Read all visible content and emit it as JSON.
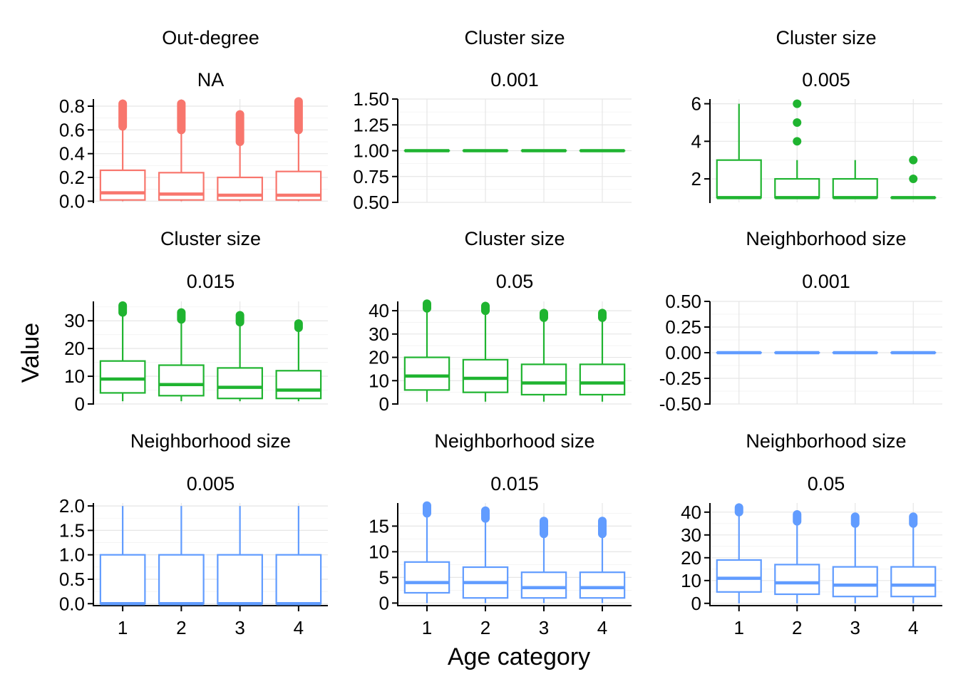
{
  "chart_data": {
    "type": "boxplot",
    "xlabel": "Age category",
    "ylabel": "Value",
    "categories": [
      "1",
      "2",
      "3",
      "4"
    ],
    "layout": "3x3 facet grid",
    "grid": true,
    "colors": {
      "out_degree": "#F8766D",
      "cluster_size": "#1FB430",
      "neighborhood_size": "#619CFF"
    },
    "panels": [
      {
        "metric": "Out-degree",
        "param": "NA",
        "color": "out_degree",
        "ylim": [
          -0.01,
          0.86
        ],
        "yticks": [
          0,
          0.2,
          0.4,
          0.6,
          0.8
        ],
        "ytick_labels": [
          "0.0",
          "0.2",
          "0.4",
          "0.6",
          "0.8"
        ],
        "boxes": [
          {
            "q1": 0.01,
            "median": 0.07,
            "q3": 0.26,
            "wlo": 0.0,
            "whi": 0.63,
            "outliers": [
              {
                "from": 0.63,
                "to": 0.82
              }
            ]
          },
          {
            "q1": 0.01,
            "median": 0.06,
            "q3": 0.24,
            "wlo": 0.0,
            "whi": 0.59,
            "outliers": [
              {
                "from": 0.6,
                "to": 0.82
              }
            ]
          },
          {
            "q1": 0.01,
            "median": 0.05,
            "q3": 0.2,
            "wlo": 0.0,
            "whi": 0.5,
            "outliers": [
              {
                "from": 0.5,
                "to": 0.73
              }
            ]
          },
          {
            "q1": 0.01,
            "median": 0.05,
            "q3": 0.25,
            "wlo": 0.0,
            "whi": 0.6,
            "outliers": [
              {
                "from": 0.6,
                "to": 0.84
              }
            ]
          }
        ]
      },
      {
        "metric": "Cluster size",
        "param": "0.001",
        "color": "cluster_size",
        "ylim": [
          0.5,
          1.5
        ],
        "yticks": [
          0.5,
          0.75,
          1.0,
          1.25,
          1.5
        ],
        "ytick_labels": [
          "0.50",
          "0.75",
          "1.00",
          "1.25",
          "1.50"
        ],
        "boxes": [
          {
            "q1": 1,
            "median": 1,
            "q3": 1,
            "wlo": 1,
            "whi": 1,
            "outliers": []
          },
          {
            "q1": 1,
            "median": 1,
            "q3": 1,
            "wlo": 1,
            "whi": 1,
            "outliers": []
          },
          {
            "q1": 1,
            "median": 1,
            "q3": 1,
            "wlo": 1,
            "whi": 1,
            "outliers": []
          },
          {
            "q1": 1,
            "median": 1,
            "q3": 1,
            "wlo": 1,
            "whi": 1,
            "outliers": []
          }
        ]
      },
      {
        "metric": "Cluster size",
        "param": "0.005",
        "color": "cluster_size",
        "ylim": [
          0.75,
          6.25
        ],
        "yticks": [
          2,
          4,
          6
        ],
        "ytick_labels": [
          "2",
          "4",
          "6"
        ],
        "boxes": [
          {
            "q1": 1,
            "median": 1,
            "q3": 3,
            "wlo": 1,
            "whi": 6,
            "outliers": []
          },
          {
            "q1": 1,
            "median": 1,
            "q3": 2,
            "wlo": 1,
            "whi": 3,
            "outliers": [
              4,
              5,
              6
            ]
          },
          {
            "q1": 1,
            "median": 1,
            "q3": 2,
            "wlo": 1,
            "whi": 3,
            "outliers": []
          },
          {
            "q1": 1,
            "median": 1,
            "q3": 1,
            "wlo": 1,
            "whi": 1,
            "outliers": [
              2,
              3
            ]
          }
        ]
      },
      {
        "metric": "Cluster size",
        "param": "0.015",
        "color": "cluster_size",
        "ylim": [
          0,
          37
        ],
        "yticks": [
          0,
          10,
          20,
          30
        ],
        "ytick_labels": [
          "0",
          "10",
          "20",
          "30"
        ],
        "boxes": [
          {
            "q1": 4,
            "median": 9,
            "q3": 15.5,
            "wlo": 1,
            "whi": 33,
            "outliers": [
              {
                "from": 33,
                "to": 35.5
              }
            ]
          },
          {
            "q1": 3,
            "median": 7,
            "q3": 14,
            "wlo": 1,
            "whi": 30.5,
            "outliers": [
              {
                "from": 30.5,
                "to": 33
              }
            ]
          },
          {
            "q1": 2,
            "median": 6,
            "q3": 13,
            "wlo": 1,
            "whi": 29.5,
            "outliers": [
              {
                "from": 29.5,
                "to": 32
              }
            ]
          },
          {
            "q1": 2,
            "median": 5,
            "q3": 12,
            "wlo": 1,
            "whi": 27.5,
            "outliers": [
              {
                "from": 27.5,
                "to": 29
              }
            ]
          }
        ]
      },
      {
        "metric": "Cluster size",
        "param": "0.05",
        "color": "cluster_size",
        "ylim": [
          0,
          44
        ],
        "yticks": [
          0,
          10,
          20,
          30,
          40
        ],
        "ytick_labels": [
          "0",
          "10",
          "20",
          "30",
          "40"
        ],
        "boxes": [
          {
            "q1": 6,
            "median": 12,
            "q3": 20,
            "wlo": 1,
            "whi": 41,
            "outliers": [
              {
                "from": 41,
                "to": 43
              }
            ]
          },
          {
            "q1": 5,
            "median": 11,
            "q3": 19,
            "wlo": 1,
            "whi": 40,
            "outliers": [
              {
                "from": 40,
                "to": 42
              }
            ]
          },
          {
            "q1": 4,
            "median": 9,
            "q3": 17,
            "wlo": 1,
            "whi": 37,
            "outliers": [
              {
                "from": 37,
                "to": 39
              }
            ]
          },
          {
            "q1": 4,
            "median": 9,
            "q3": 17,
            "wlo": 1,
            "whi": 37,
            "outliers": [
              {
                "from": 37,
                "to": 39
              }
            ]
          }
        ]
      },
      {
        "metric": "Neighborhood size",
        "param": "0.001",
        "color": "neighborhood_size",
        "ylim": [
          -0.5,
          0.5
        ],
        "yticks": [
          -0.5,
          -0.25,
          0,
          0.25,
          0.5
        ],
        "ytick_labels": [
          "-0.50",
          "-0.25",
          "0.00",
          "0.25",
          "0.50"
        ],
        "boxes": [
          {
            "q1": 0,
            "median": 0,
            "q3": 0,
            "wlo": 0,
            "whi": 0,
            "outliers": []
          },
          {
            "q1": 0,
            "median": 0,
            "q3": 0,
            "wlo": 0,
            "whi": 0,
            "outliers": []
          },
          {
            "q1": 0,
            "median": 0,
            "q3": 0,
            "wlo": 0,
            "whi": 0,
            "outliers": []
          },
          {
            "q1": 0,
            "median": 0,
            "q3": 0,
            "wlo": 0,
            "whi": 0,
            "outliers": []
          }
        ]
      },
      {
        "metric": "Neighborhood size",
        "param": "0.005",
        "color": "neighborhood_size",
        "ylim": [
          -0.04,
          2.06
        ],
        "yticks": [
          0,
          0.5,
          1.0,
          1.5,
          2.0
        ],
        "ytick_labels": [
          "0.0",
          "0.5",
          "1.0",
          "1.5",
          "2.0"
        ],
        "boxes": [
          {
            "q1": 0,
            "median": 0,
            "q3": 1,
            "wlo": 0,
            "whi": 2,
            "outliers": []
          },
          {
            "q1": 0,
            "median": 0,
            "q3": 1,
            "wlo": 0,
            "whi": 2,
            "outliers": []
          },
          {
            "q1": 0,
            "median": 0,
            "q3": 1,
            "wlo": 0,
            "whi": 2,
            "outliers": []
          },
          {
            "q1": 0,
            "median": 0,
            "q3": 1,
            "wlo": 0,
            "whi": 2,
            "outliers": []
          }
        ]
      },
      {
        "metric": "Neighborhood size",
        "param": "0.015",
        "color": "neighborhood_size",
        "ylim": [
          -0.5,
          19.5
        ],
        "yticks": [
          0,
          5,
          10,
          15
        ],
        "ytick_labels": [
          "0",
          "5",
          "10",
          "15"
        ],
        "boxes": [
          {
            "q1": 2,
            "median": 4,
            "q3": 8,
            "wlo": 0,
            "whi": 17.5,
            "outliers": [
              {
                "from": 17.5,
                "to": 19
              }
            ]
          },
          {
            "q1": 1,
            "median": 4,
            "q3": 7,
            "wlo": 0,
            "whi": 16.5,
            "outliers": [
              {
                "from": 16.5,
                "to": 18
              }
            ]
          },
          {
            "q1": 1,
            "median": 3,
            "q3": 6,
            "wlo": 0,
            "whi": 13.5,
            "outliers": [
              {
                "from": 13.5,
                "to": 16
              }
            ]
          },
          {
            "q1": 1,
            "median": 3,
            "q3": 6,
            "wlo": 0,
            "whi": 13.5,
            "outliers": [
              {
                "from": 13.5,
                "to": 16
              }
            ]
          }
        ]
      },
      {
        "metric": "Neighborhood size",
        "param": "0.05",
        "color": "neighborhood_size",
        "ylim": [
          -1,
          44
        ],
        "yticks": [
          0,
          10,
          20,
          30,
          40
        ],
        "ytick_labels": [
          "0",
          "10",
          "20",
          "30",
          "40"
        ],
        "boxes": [
          {
            "q1": 5,
            "median": 11,
            "q3": 19,
            "wlo": 0,
            "whi": 40,
            "outliers": [
              {
                "from": 40,
                "to": 42
              }
            ]
          },
          {
            "q1": 4,
            "median": 9,
            "q3": 17,
            "wlo": 0,
            "whi": 36,
            "outliers": [
              {
                "from": 36,
                "to": 39
              }
            ]
          },
          {
            "q1": 3,
            "median": 8,
            "q3": 16,
            "wlo": 0,
            "whi": 35,
            "outliers": [
              {
                "from": 35,
                "to": 38
              }
            ]
          },
          {
            "q1": 3,
            "median": 8,
            "q3": 16,
            "wlo": 0,
            "whi": 35,
            "outliers": [
              {
                "from": 35,
                "to": 38
              }
            ]
          }
        ]
      }
    ]
  }
}
